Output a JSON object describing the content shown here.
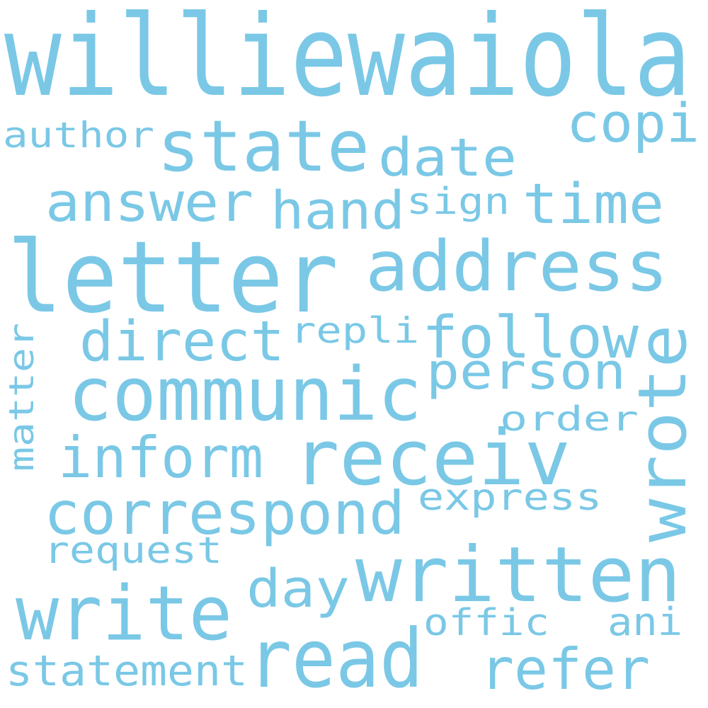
{
  "word_color": "#7ac8e6",
  "background_color": "#ffffff",
  "words": [
    "williewaiola",
    "letter",
    "communic",
    "receiv",
    "written",
    "address",
    "correspond",
    "write",
    "read",
    "state",
    "wrote",
    "follow",
    "inform",
    "answer",
    "direct",
    "refer",
    "person",
    "copi",
    "time",
    "date",
    "hand",
    "statement",
    "day",
    "request",
    "express",
    "author",
    "offic",
    "matter",
    "ani",
    "order",
    "sign",
    "repli"
  ]
}
